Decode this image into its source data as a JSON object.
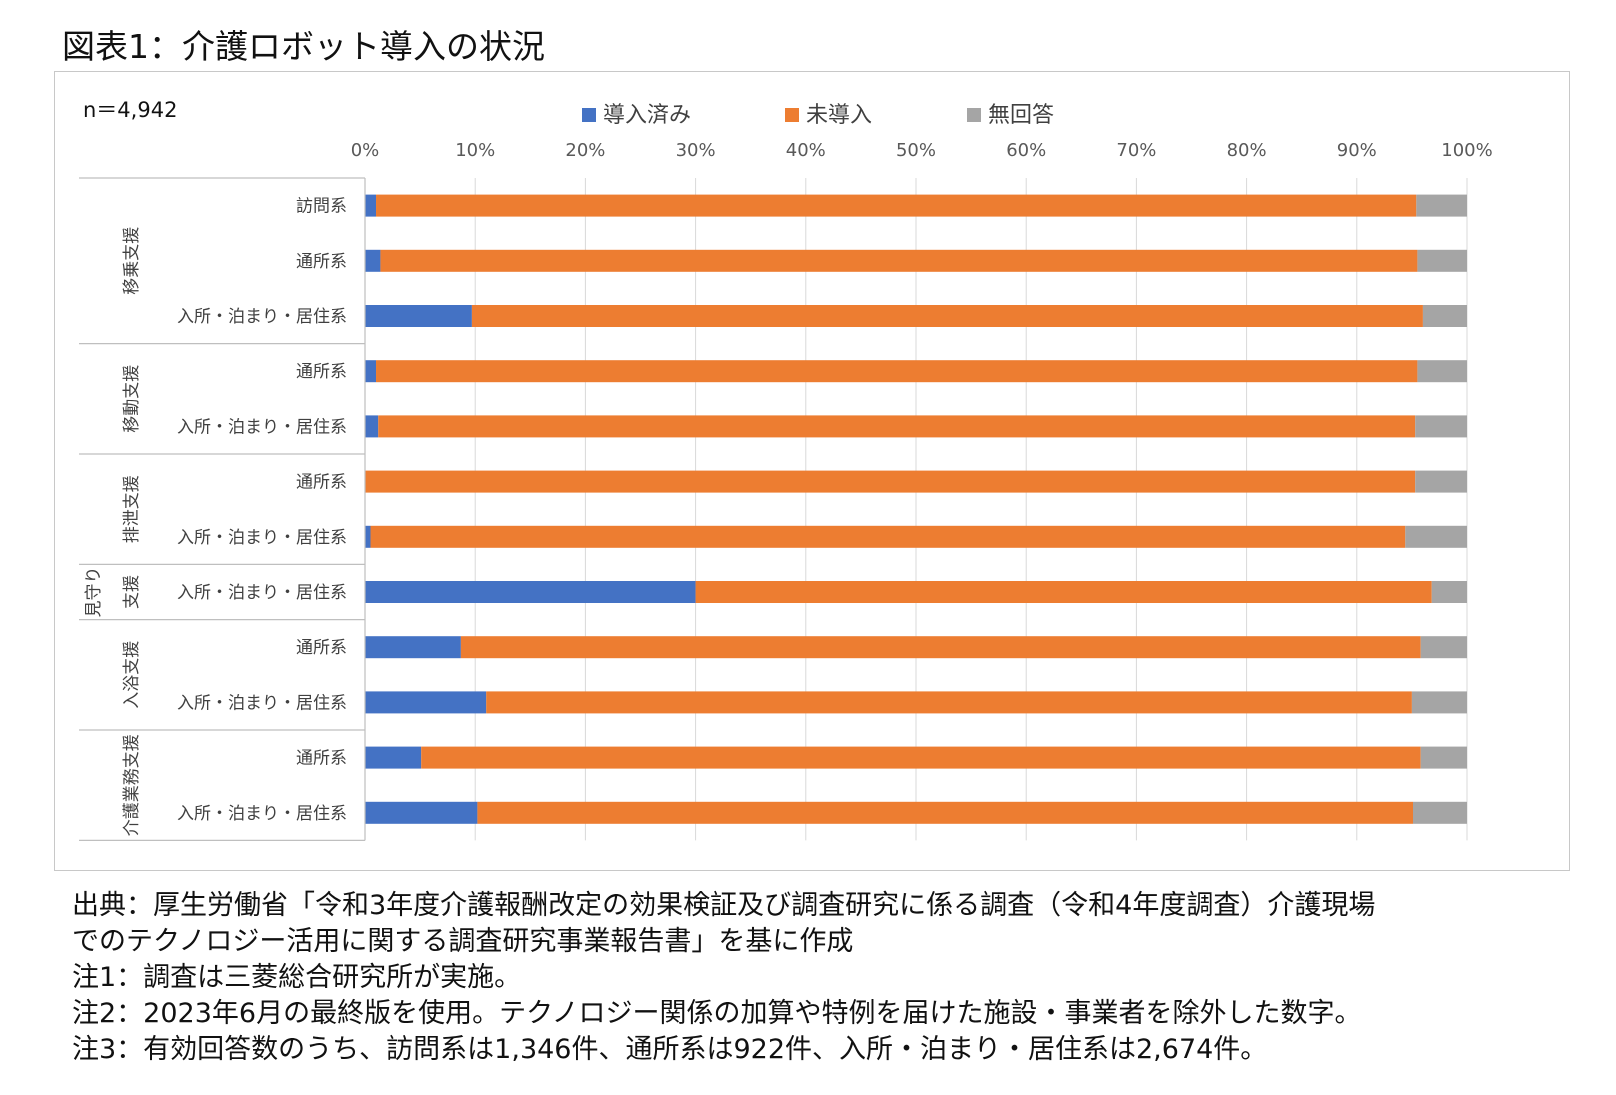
{
  "title": "図表1：介護ロボット導入の状況",
  "chart_data": {
    "type": "bar",
    "orientation": "horizontal",
    "stacked": "percent",
    "sample_label": "n＝4,942",
    "legend_position": "top",
    "xlim": [
      0,
      100
    ],
    "x_ticks": [
      "0%",
      "10%",
      "20%",
      "30%",
      "40%",
      "50%",
      "60%",
      "70%",
      "80%",
      "90%",
      "100%"
    ],
    "grid": true,
    "groups": [
      {
        "name": "移乗支援",
        "rows": [
          0,
          1,
          2
        ]
      },
      {
        "name": "移動支援",
        "rows": [
          3,
          4
        ]
      },
      {
        "name": "排泄支援",
        "rows": [
          5,
          6
        ]
      },
      {
        "name": "見守り支援",
        "rows": [
          7
        ]
      },
      {
        "name": "入浴支援",
        "rows": [
          8,
          9
        ]
      },
      {
        "name": "介護業務支援",
        "rows": [
          10,
          11
        ]
      }
    ],
    "categories": [
      "訪問系",
      "通所系",
      "入所・泊まり・居住系",
      "通所系",
      "入所・泊まり・居住系",
      "通所系",
      "入所・泊まり・居住系",
      "入所・泊まり・居住系",
      "通所系",
      "入所・泊まり・居住系",
      "通所系",
      "入所・泊まり・居住系"
    ],
    "series": [
      {
        "name": "導入済み",
        "color": "#4472C4",
        "values": [
          1.0,
          1.4,
          9.7,
          1.0,
          1.2,
          0.0,
          0.5,
          30.0,
          8.7,
          11.0,
          5.1,
          10.2
        ]
      },
      {
        "name": "未導入",
        "color": "#ED7D31",
        "values": [
          94.4,
          94.1,
          86.3,
          94.5,
          94.1,
          95.3,
          93.9,
          66.8,
          87.1,
          84.0,
          90.7,
          84.9
        ]
      },
      {
        "name": "無回答",
        "color": "#A5A5A5",
        "values": [
          4.6,
          4.5,
          4.0,
          4.5,
          4.7,
          4.7,
          5.6,
          3.2,
          4.2,
          5.0,
          4.2,
          4.9
        ]
      }
    ]
  },
  "notes": [
    "出典：厚生労働省「令和3年度介護報酬改定の効果検証及び調査研究に係る調査（令和4年度調査）介護現場",
    "でのテクノロジー活用に関する調査研究事業報告書」を基に作成",
    "注1：調査は三菱総合研究所が実施。",
    "注2：2023年6月の最終版を使用。テクノロジー関係の加算や特例を届けた施設・事業者を除外した数字。",
    "注3：有効回答数のうち、訪問系は1,346件、通所系は922件、入所・泊まり・居住系は2,674件。"
  ]
}
